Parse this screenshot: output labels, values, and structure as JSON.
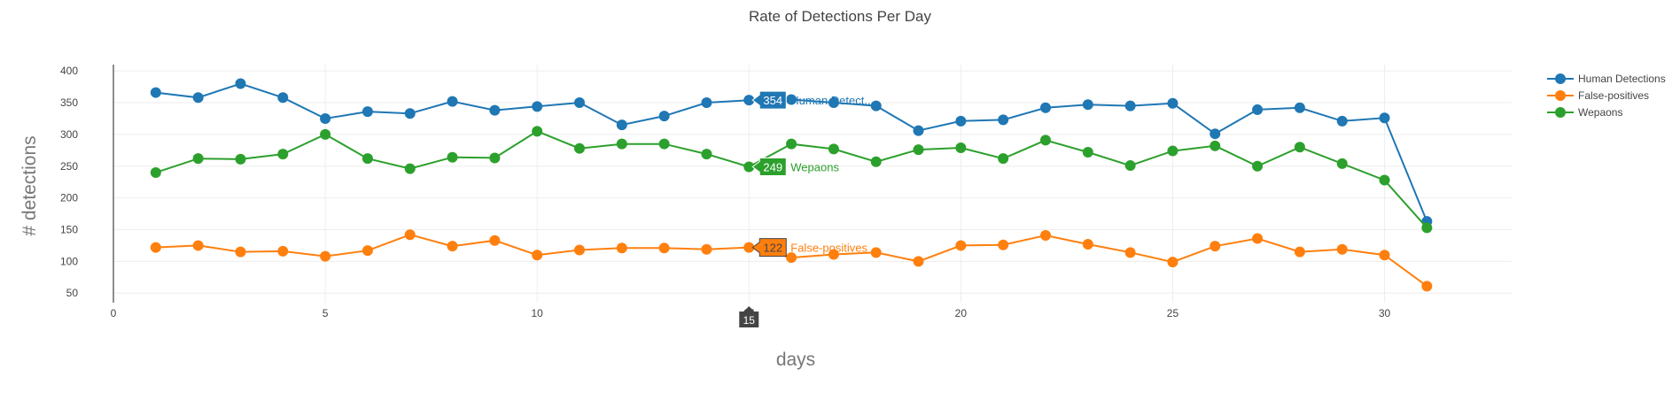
{
  "chart_data": {
    "type": "line",
    "title": "Rate of Detections Per Day",
    "xlabel": "days",
    "ylabel": "# detections",
    "xlim": [
      0,
      33
    ],
    "ylim": [
      35,
      410
    ],
    "x_ticks": [
      0,
      5,
      10,
      15,
      20,
      25,
      30
    ],
    "y_ticks": [
      50,
      100,
      150,
      200,
      250,
      300,
      350,
      400
    ],
    "grid": true,
    "legend_position": "top-right",
    "x": [
      1,
      2,
      3,
      4,
      5,
      6,
      7,
      8,
      9,
      10,
      11,
      12,
      13,
      14,
      15,
      16,
      17,
      18,
      19,
      20,
      21,
      22,
      23,
      24,
      25,
      26,
      27,
      28,
      29,
      30,
      31
    ],
    "series": [
      {
        "name": "Human Detections",
        "color": "#1f77b4",
        "values": [
          366,
          358,
          380,
          358,
          325,
          336,
          333,
          352,
          338,
          344,
          350,
          315,
          329,
          350,
          354,
          355,
          350,
          345,
          306,
          321,
          323,
          342,
          347,
          345,
          349,
          301,
          339,
          342,
          321,
          326,
          163
        ]
      },
      {
        "name": "False-positives",
        "color": "#ff7f0e",
        "values": [
          122,
          125,
          115,
          116,
          108,
          117,
          142,
          124,
          133,
          110,
          118,
          121,
          121,
          119,
          122,
          106,
          111,
          114,
          100,
          125,
          126,
          141,
          127,
          114,
          99,
          124,
          136,
          115,
          119,
          110,
          61
        ]
      },
      {
        "name": "Wepaons",
        "color": "#2ca02c",
        "values": [
          240,
          262,
          261,
          269,
          300,
          262,
          246,
          264,
          263,
          305,
          278,
          285,
          285,
          269,
          249,
          285,
          277,
          257,
          276,
          279,
          262,
          291,
          272,
          251,
          274,
          282,
          250,
          280,
          254,
          228,
          153
        ]
      }
    ],
    "hover": {
      "x_label": "15",
      "x_value": 15,
      "labels": [
        {
          "series": "Human Detections",
          "value": "354",
          "name": "Human Detect...",
          "color": "#1f77b4"
        },
        {
          "series": "Wepaons",
          "value": "249",
          "name": "Wepaons",
          "color": "#2ca02c"
        },
        {
          "series": "False-positives",
          "value": "122",
          "name": "False-positives",
          "color": "#ff7f0e"
        }
      ]
    }
  }
}
